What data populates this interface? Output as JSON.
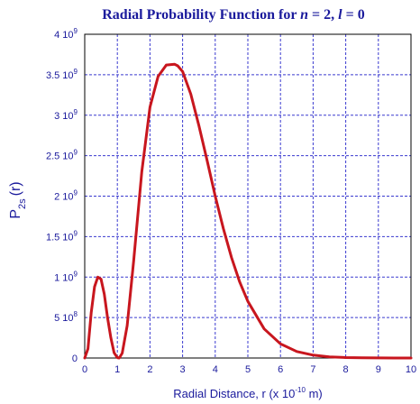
{
  "chart_data": {
    "type": "line",
    "title_prefix": "Radial Probability Function for ",
    "title_n": "n",
    "title_n_eq": " = 2, ",
    "title_l": "l",
    "title_l_eq": " = 0",
    "xlabel_main": "Radial Distance, r (x 10",
    "xlabel_exp": "-10",
    "xlabel_unit": " m)",
    "ylabel_main": "P",
    "ylabel_sub": "2s",
    "ylabel_arg": "(r)",
    "xlim": [
      0,
      10
    ],
    "ylim": [
      0,
      4000000000
    ],
    "xticks": [
      "0",
      "1",
      "2",
      "3",
      "4",
      "5",
      "6",
      "7",
      "8",
      "9",
      "10"
    ],
    "yticks": [
      {
        "value": 0,
        "mant": "0",
        "exp": ""
      },
      {
        "value": 500000000,
        "mant": "5 10",
        "exp": "8"
      },
      {
        "value": 1000000000,
        "mant": "1 10",
        "exp": "9"
      },
      {
        "value": 1500000000,
        "mant": "1.5 10",
        "exp": "9"
      },
      {
        "value": 2000000000,
        "mant": "2 10",
        "exp": "9"
      },
      {
        "value": 2500000000,
        "mant": "2.5 10",
        "exp": "9"
      },
      {
        "value": 3000000000,
        "mant": "3 10",
        "exp": "9"
      },
      {
        "value": 3500000000,
        "mant": "3.5 10",
        "exp": "9"
      },
      {
        "value": 4000000000,
        "mant": "4 10",
        "exp": "9"
      }
    ],
    "grid": true,
    "series": [
      {
        "color": "#c8161e",
        "x": [
          0,
          0.1,
          0.2,
          0.3,
          0.4,
          0.5,
          0.6,
          0.7,
          0.8,
          0.9,
          1.0,
          1.058,
          1.15,
          1.3,
          1.5,
          1.75,
          2.0,
          2.25,
          2.5,
          2.75,
          2.85,
          3.0,
          3.25,
          3.5,
          3.75,
          4.0,
          4.25,
          4.5,
          4.75,
          5.0,
          5.5,
          6.0,
          6.5,
          7.0,
          7.5,
          8.0,
          8.5,
          9.0,
          9.5,
          10.0
        ],
        "y": [
          0,
          115000000,
          560000000,
          880000000,
          1000000000,
          975000000,
          790000000,
          500000000,
          250000000,
          65000000,
          5000000,
          0,
          60000000,
          400000000,
          1200000000,
          2300000000,
          3100000000,
          3480000000,
          3620000000,
          3630000000,
          3610000000,
          3540000000,
          3260000000,
          2870000000,
          2440000000,
          2000000000,
          1600000000,
          1240000000,
          940000000,
          700000000,
          360000000,
          175000000,
          80000000,
          36000000,
          15000000,
          6000000,
          2500000,
          1000000,
          400000,
          150000
        ]
      }
    ]
  }
}
